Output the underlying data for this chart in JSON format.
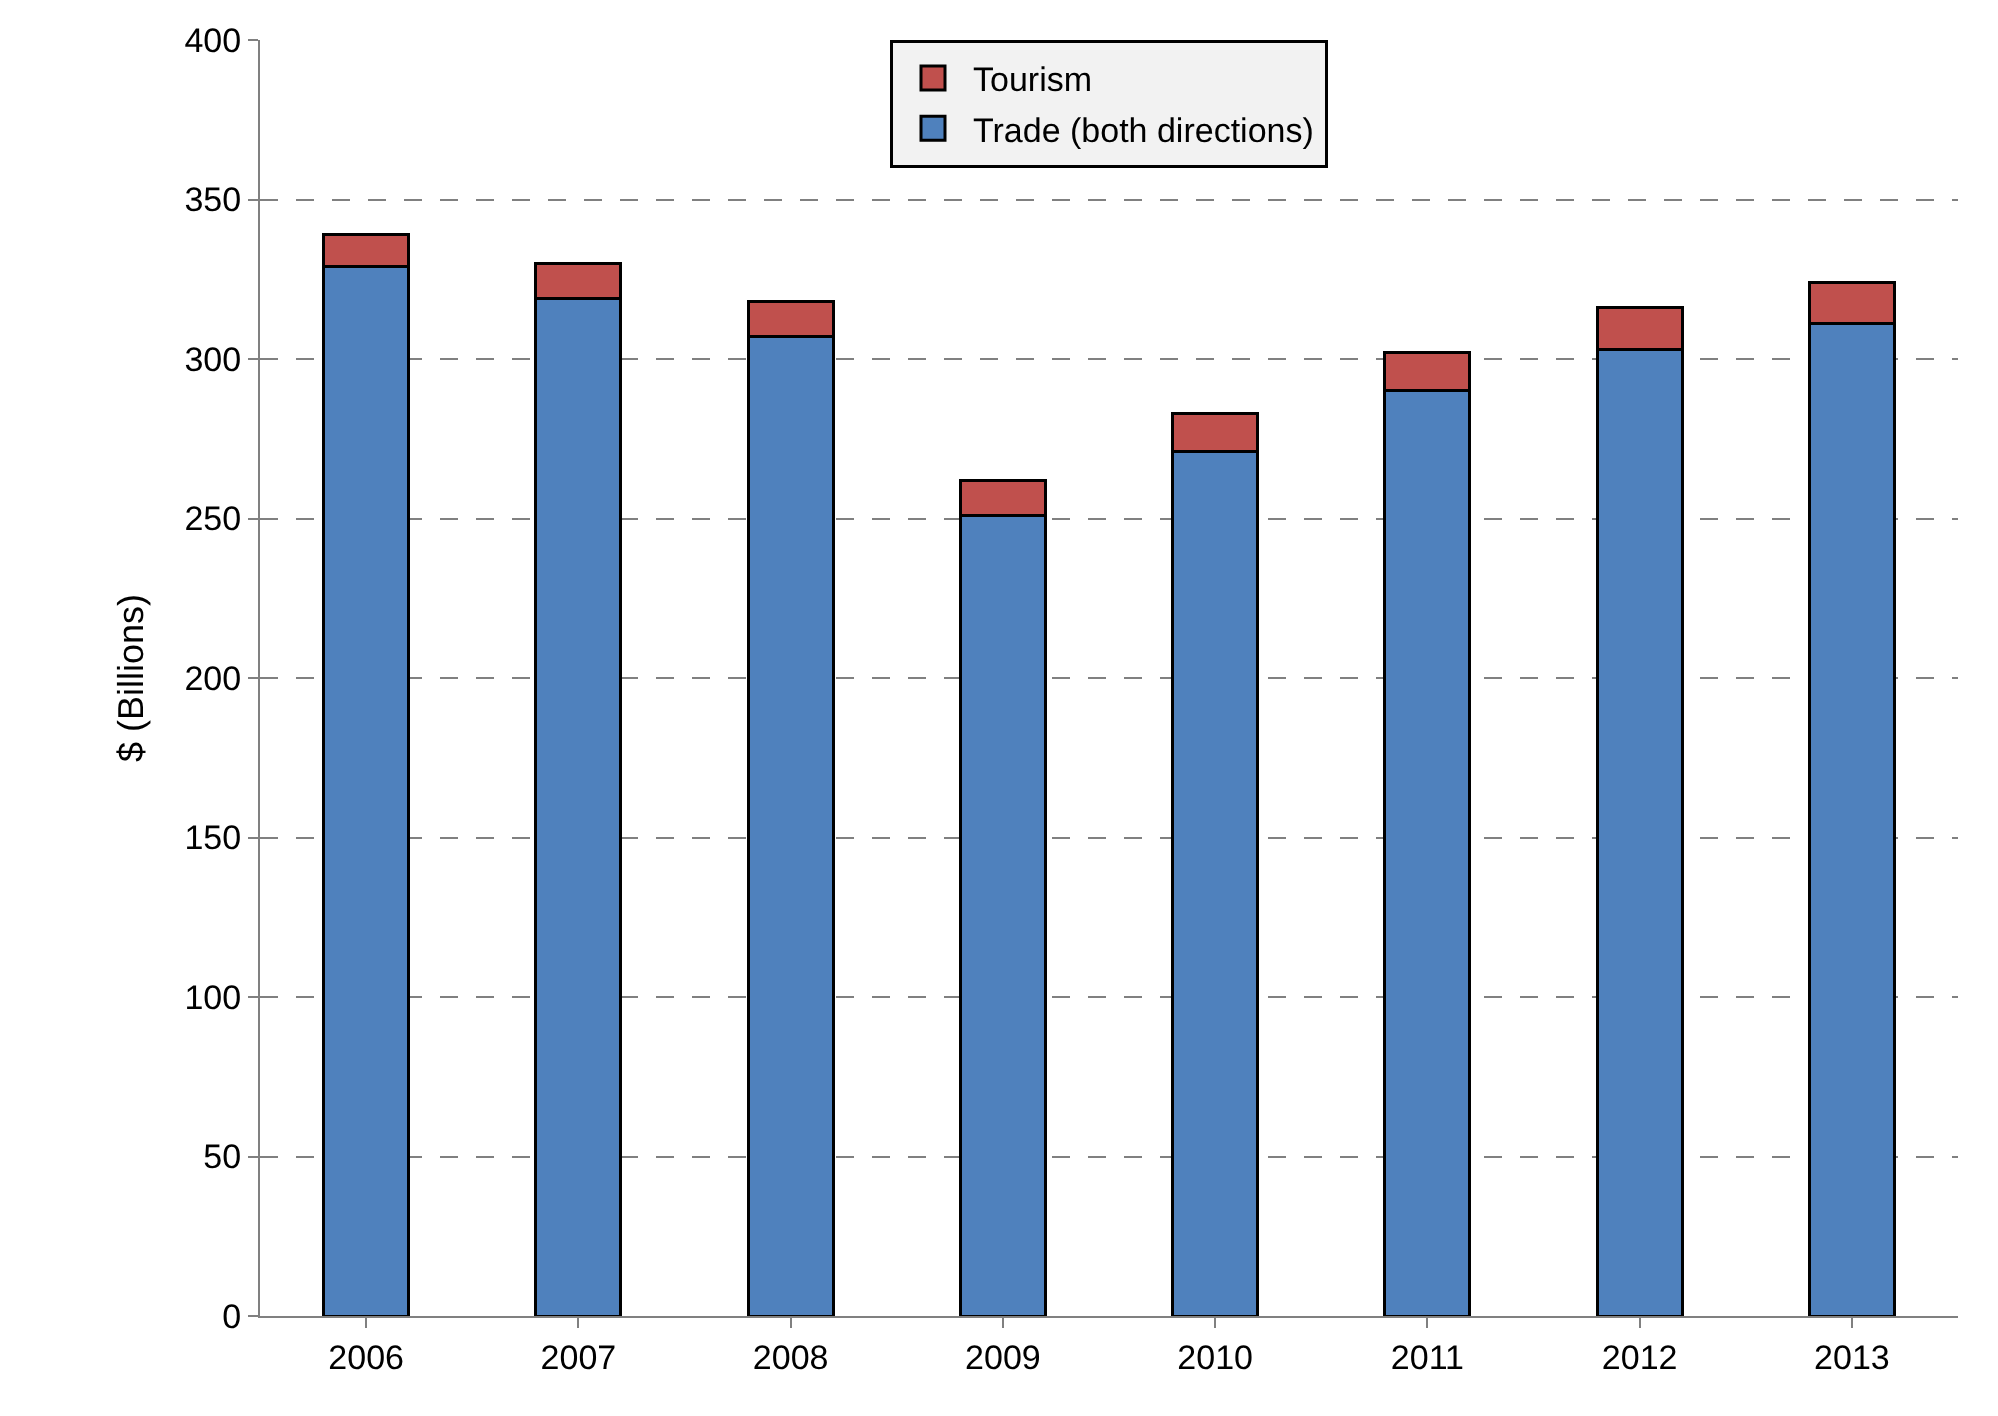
{
  "chart_data": {
    "type": "bar",
    "stacked": true,
    "ylabel": "$ (Billions)",
    "categories": [
      "2006",
      "2007",
      "2008",
      "2009",
      "2010",
      "2011",
      "2012",
      "2013"
    ],
    "series": [
      {
        "name": "Trade (both directions)",
        "color": "#4f81bd",
        "values": [
          329,
          319,
          307,
          251,
          271,
          290,
          303,
          311
        ]
      },
      {
        "name": "Tourism",
        "color": "#c0504d",
        "values": [
          10,
          11,
          11,
          11,
          12,
          12,
          13,
          13
        ]
      }
    ],
    "ylim": [
      0,
      400
    ],
    "yticks": [
      0,
      50,
      100,
      150,
      200,
      250,
      300,
      350,
      400
    ],
    "grid": "y",
    "legend": "top"
  }
}
